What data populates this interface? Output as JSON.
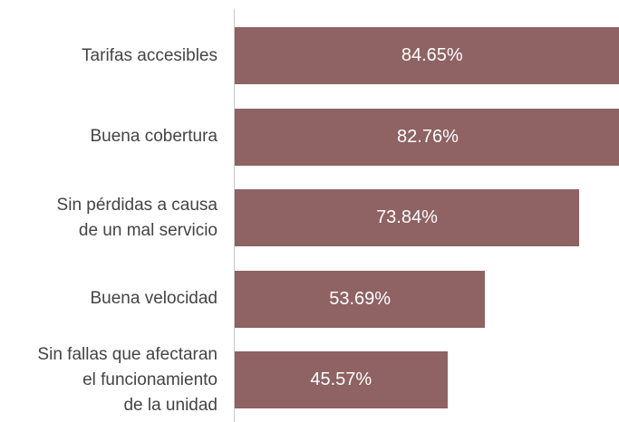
{
  "chart_data": {
    "type": "bar",
    "orientation": "horizontal",
    "categories": [
      "Tarifas accesibles",
      "Buena cobertura",
      "Sin pérdidas a causa\nde un mal servicio",
      "Buena velocidad",
      "Sin fallas que afectaran\nel funcionamiento\nde la unidad"
    ],
    "values": [
      84.65,
      82.76,
      73.84,
      53.69,
      45.57
    ],
    "value_labels": [
      "84.65%",
      "82.76%",
      "73.84%",
      "53.69%",
      "45.57%"
    ],
    "color": "#8f6263"
  }
}
